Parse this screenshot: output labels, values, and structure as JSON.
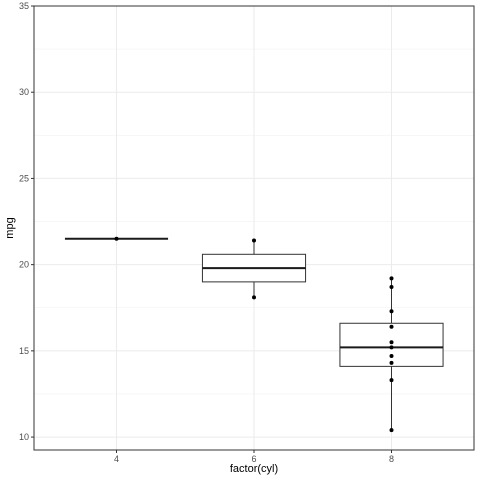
{
  "chart_data": {
    "type": "box",
    "xlabel": "factor(cyl)",
    "ylabel": "mpg",
    "categories": [
      "4",
      "6",
      "8"
    ],
    "ylim": [
      9.25,
      35
    ],
    "y_ticks": [
      10,
      15,
      20,
      25,
      30,
      35
    ],
    "grid": true,
    "theme": "bw",
    "boxes": [
      {
        "category": "4",
        "min": 21.5,
        "q1": 21.5,
        "median": 21.5,
        "q3": 21.5,
        "max": 21.5,
        "points": [
          21.5
        ]
      },
      {
        "category": "6",
        "min": 18.1,
        "q1": 19.0,
        "median": 19.8,
        "q3": 20.6,
        "max": 21.4,
        "points": [
          21.4,
          18.1
        ]
      },
      {
        "category": "8",
        "min": 10.4,
        "q1": 14.1,
        "median": 15.2,
        "q3": 16.6,
        "max": 19.2,
        "points": [
          19.2,
          18.7,
          17.3,
          16.4,
          15.5,
          15.2,
          14.7,
          14.3,
          13.3,
          10.4
        ]
      }
    ]
  }
}
